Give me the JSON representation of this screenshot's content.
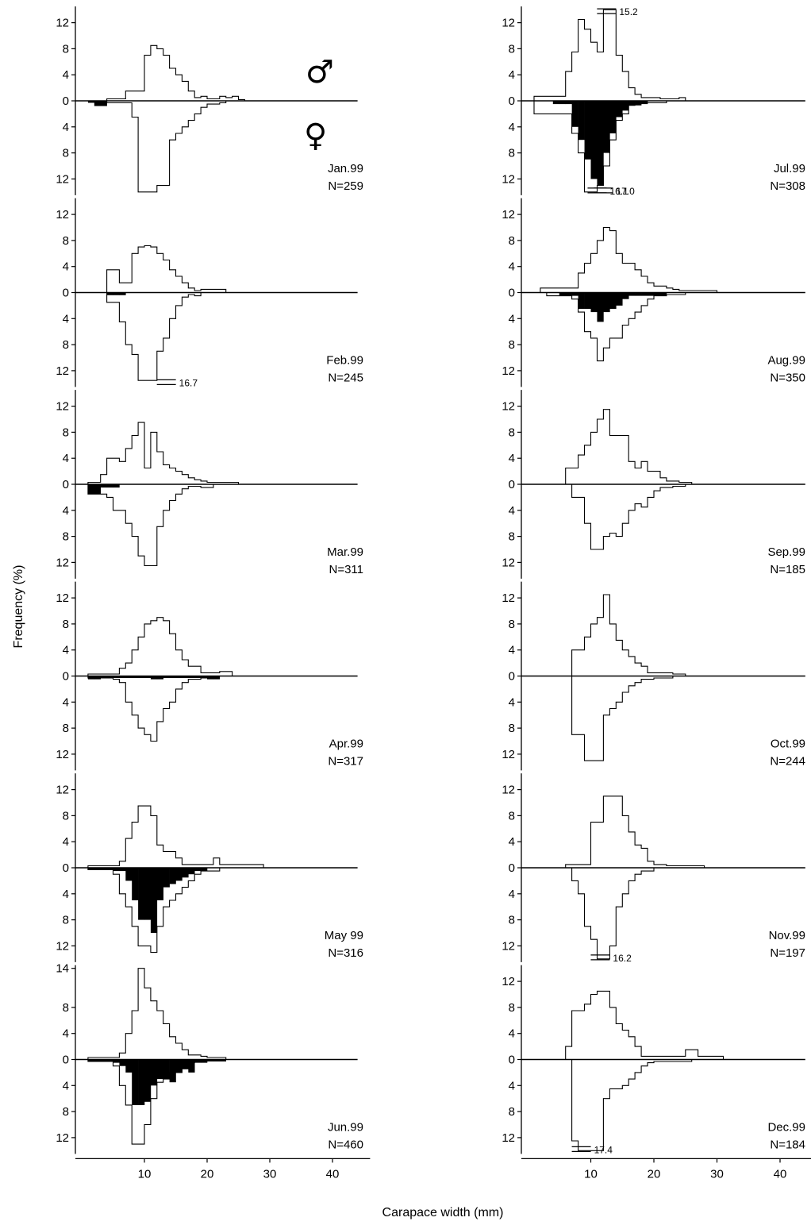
{
  "figure": {
    "xlabel": "Carapace width (mm)",
    "ylabel": "Frequency (%)",
    "male_symbol": "♂",
    "female_symbol": "♀"
  },
  "chart_data": {
    "type": "bar",
    "subtype": "mirrored size-frequency histogram (males up, females down; black = ovigerous females)",
    "bin_width_mm": 1,
    "x_range": [
      0,
      46
    ],
    "x_ticks": [
      10,
      20,
      30,
      40
    ],
    "y_range_up": [
      0,
      14
    ],
    "y_range_down": [
      0,
      14
    ],
    "y_ticks_default": [
      0,
      4,
      8,
      12
    ],
    "panels": [
      {
        "month": "Jan.99",
        "n": "N=259",
        "col": 0,
        "row": 0,
        "males": {
          "start": 4,
          "values": [
            0.3,
            0.3,
            0.3,
            1.5,
            1.5,
            1.5,
            7.0,
            8.5,
            8.0,
            7.0,
            5.0,
            4.0,
            3.0,
            1.5,
            0.5,
            0.7,
            0.3,
            0.3,
            0.7,
            0.5,
            0.7,
            0.2
          ]
        },
        "females": {
          "start": 4,
          "values": [
            0.3,
            0.3,
            0.3,
            0.3,
            2.5,
            14,
            14,
            14,
            13,
            13,
            6,
            5,
            4,
            3,
            2,
            1,
            0.5,
            0.5,
            0.3
          ]
        },
        "ovigerous": {
          "start": 1,
          "values": [
            0.3,
            0.8,
            0.8
          ]
        },
        "annotations": []
      },
      {
        "month": "Feb.99",
        "n": "N=245",
        "col": 0,
        "row": 1,
        "males": {
          "start": 4,
          "values": [
            3.5,
            3.5,
            1.5,
            1.5,
            6.0,
            7.0,
            7.2,
            7.0,
            6.0,
            5.0,
            3.5,
            2.5,
            1.5,
            0.7,
            0.3,
            0.5,
            0.5,
            0.5,
            0.5
          ]
        },
        "females": {
          "start": 4,
          "values": [
            1.5,
            1.5,
            4.5,
            8.0,
            9.5,
            13.5,
            13.5,
            13.5,
            9,
            7,
            4,
            2,
            0.7,
            0.3,
            0.5
          ]
        },
        "ovigerous": {
          "start": 4,
          "values": [
            0.4,
            0.4,
            0.4
          ]
        },
        "annotations": [
          {
            "text": "16.7",
            "x": 13.5,
            "side": "down"
          }
        ]
      },
      {
        "month": "Mar.99",
        "n": "N=311",
        "col": 0,
        "row": 2,
        "males": {
          "start": 1,
          "values": [
            0.3,
            0.3,
            1.5,
            4.0,
            4.0,
            3.5,
            5.5,
            7.5,
            9.5,
            2.5,
            8.0,
            5.0,
            3.0,
            2.5,
            2.0,
            1.5,
            1.0,
            0.7,
            0.5,
            0.3,
            0.3,
            0.3,
            0.3,
            0.3
          ]
        },
        "females": {
          "start": 1,
          "values": [
            1.5,
            1.5,
            1.5,
            2,
            4,
            4,
            6,
            8,
            11,
            12.5,
            12.5,
            6.5,
            4,
            2.5,
            1.5,
            0.7,
            0.3,
            0.3,
            0.5,
            0.5
          ]
        },
        "ovigerous": {
          "start": 1,
          "values": [
            1.5,
            1.5,
            0.5,
            0.5,
            0.5
          ]
        },
        "annotations": []
      },
      {
        "month": "Apr.99",
        "n": "N=317",
        "col": 0,
        "row": 3,
        "males": {
          "start": 1,
          "values": [
            0.3,
            0.3,
            0.3,
            0.3,
            0.3,
            1.2,
            2.0,
            4.0,
            6.0,
            8.0,
            8.5,
            9.0,
            8.5,
            6.5,
            4.0,
            2.5,
            1.5,
            1.5,
            0.5,
            0.5,
            0.5,
            0.7,
            0.7
          ]
        },
        "females": {
          "start": 1,
          "values": [
            0.3,
            0.3,
            0.3,
            0.3,
            0.5,
            1,
            4,
            6,
            8,
            9,
            10,
            7,
            5,
            4,
            2,
            1,
            0.5,
            0.5,
            0.3,
            0.3
          ]
        },
        "ovigerous": {
          "start": 1,
          "values": [
            0.5,
            0.5,
            0.3,
            0.3,
            0.3,
            0.3,
            0.3,
            0.3,
            0.3,
            0.3,
            0.5,
            0.5,
            0.3,
            0.3,
            0.3,
            0.3,
            0.3,
            0.3,
            0.3,
            0.5,
            0.5
          ]
        },
        "annotations": []
      },
      {
        "month": "May 99",
        "n": "N=316",
        "col": 0,
        "row": 4,
        "males": {
          "start": 1,
          "values": [
            0.3,
            0.3,
            0.3,
            0.3,
            0.3,
            1.0,
            4.5,
            7.0,
            9.5,
            9.5,
            8.0,
            3.5,
            2.5,
            2.5,
            1.5,
            0.5,
            0.5,
            0.5,
            0.5,
            0.5,
            1.5,
            0.5,
            0.5,
            0.5,
            0.5,
            0.5,
            0.5,
            0.5
          ]
        },
        "females": {
          "start": 1,
          "values": [
            0.3,
            0.3,
            0.3,
            0.3,
            1,
            4,
            6,
            9,
            12,
            12,
            13,
            9,
            6,
            5,
            4,
            3,
            2,
            1,
            0.5,
            0.5,
            0.5
          ]
        },
        "ovigerous": {
          "start": 1,
          "values": [
            0.3,
            0.3,
            0.3,
            0.3,
            0.5,
            0.5,
            2,
            5,
            8,
            8,
            10,
            5,
            3,
            2.5,
            2,
            1.5,
            1,
            0.5,
            0.5
          ]
        },
        "annotations": []
      },
      {
        "month": "Jun.99",
        "n": "N=460",
        "col": 0,
        "row": 5,
        "males": {
          "start": 1,
          "values": [
            0.3,
            0.3,
            0.3,
            0.3,
            0.3,
            1.0,
            4.0,
            7.5,
            14,
            11,
            9.0,
            7.5,
            5.5,
            3.5,
            2.5,
            1.5,
            0.7,
            0.7,
            0.5,
            0.3,
            0.3,
            0.3
          ]
        },
        "females": {
          "start": 1,
          "values": [
            0.3,
            0.3,
            0.3,
            0.3,
            1,
            4,
            7,
            13,
            13,
            10,
            6,
            3.5,
            3,
            2,
            2,
            0.5,
            0.5,
            0.3
          ]
        },
        "ovigerous": {
          "start": 1,
          "values": [
            0.3,
            0.3,
            0.3,
            0.3,
            0.5,
            1,
            2,
            7,
            7,
            6.5,
            4,
            3,
            3,
            3.5,
            2,
            1.5,
            2,
            0.5,
            0.5,
            0.3,
            0.3,
            0.3
          ]
        },
        "annotations": []
      },
      {
        "month": "Jul.99",
        "n": "N=308",
        "col": 1,
        "row": 0,
        "males": {
          "start": 1,
          "values": [
            0.7,
            0.7,
            0.7,
            0.7,
            0.7,
            4.5,
            7.5,
            12.5,
            11,
            9,
            7.5,
            14,
            14,
            7.0,
            4.5,
            2.0,
            1.0,
            0.5,
            0.5,
            0.5,
            0.3,
            0.3,
            0.3,
            0.5
          ]
        },
        "females": {
          "start": 1,
          "values": [
            2,
            2,
            2,
            2,
            2,
            2,
            5,
            8,
            14,
            14,
            13,
            10,
            6,
            3,
            2,
            0.7,
            0.3,
            0.3,
            0.3,
            0.3,
            0.3
          ]
        },
        "ovigerous": {
          "start": 4,
          "values": [
            0.5,
            0.5,
            0.5,
            4,
            6,
            9,
            12,
            13,
            8,
            5,
            2.5,
            1.5,
            0.7,
            0.7,
            0.5
          ]
        },
        "annotations": [
          {
            "text": "15.2",
            "x": 12.5,
            "side": "up"
          },
          {
            "text": "16.1",
            "x": 11.0,
            "side": "down"
          },
          {
            "text": "17.0",
            "x": 12.0,
            "side": "down"
          }
        ]
      },
      {
        "month": "Aug.99",
        "n": "N=350",
        "col": 1,
        "row": 1,
        "males": {
          "start": 2,
          "values": [
            0.7,
            0.7,
            0.7,
            0.7,
            0.7,
            0.7,
            3.0,
            4.5,
            6.0,
            8.0,
            10.0,
            9.5,
            6.0,
            4.5,
            4.5,
            3.5,
            2.5,
            1.5,
            1.0,
            1.0,
            0.7,
            0.5,
            0.3,
            0.3,
            0.3,
            0.3,
            0.3,
            0.3
          ]
        },
        "females": {
          "start": 3,
          "values": [
            0.5,
            0.5,
            0.5,
            0.5,
            1,
            3,
            6,
            7,
            10.5,
            8.5,
            7,
            7,
            5,
            4,
            3,
            2,
            1,
            0.5,
            0.5,
            0.3,
            0.3,
            0.3
          ]
        },
        "ovigerous": {
          "start": 5,
          "values": [
            0.5,
            0.5,
            0.5,
            2.5,
            2.5,
            3,
            4.5,
            3,
            2.5,
            2,
            1,
            0.5,
            0.5,
            0.5,
            0.5,
            0.5,
            0.5
          ]
        },
        "annotations": []
      },
      {
        "month": "Sep.99",
        "n": "N=185",
        "col": 1,
        "row": 2,
        "males": {
          "start": 6,
          "values": [
            2.5,
            2.5,
            4.5,
            6.0,
            8.0,
            10.0,
            11.5,
            7.5,
            7.5,
            7.5,
            3.5,
            2.5,
            3.5,
            2.0,
            2.0,
            1.0,
            0.5,
            0.5,
            0.3,
            0.3
          ]
        },
        "females": {
          "start": 7,
          "values": [
            2,
            2,
            6,
            10,
            10,
            8,
            7.5,
            8,
            6,
            4,
            3,
            3.5,
            2,
            1,
            0.5,
            0.5,
            0.3,
            0.3
          ]
        },
        "ovigerous": {
          "start": 7,
          "values": []
        },
        "annotations": []
      },
      {
        "month": "Oct.99",
        "n": "N=244",
        "col": 1,
        "row": 3,
        "males": {
          "start": 7,
          "values": [
            4.0,
            4.0,
            6.0,
            8.0,
            9.0,
            12.5,
            8.0,
            5.5,
            4.0,
            3.0,
            2.0,
            1.5,
            0.5,
            0.5,
            0.5,
            0.5,
            0.3,
            0.3
          ]
        },
        "females": {
          "start": 7,
          "values": [
            9,
            9,
            13,
            13,
            13,
            6,
            5,
            4,
            2.5,
            1.5,
            1,
            0.5,
            0.5,
            0.3,
            0.3,
            0.3
          ]
        },
        "ovigerous": {
          "start": 7,
          "values": []
        },
        "annotations": []
      },
      {
        "month": "Nov.99",
        "n": "N=197",
        "col": 1,
        "row": 4,
        "males": {
          "start": 6,
          "values": [
            0.5,
            0.5,
            0.5,
            0.5,
            7.0,
            7.0,
            11.0,
            11.0,
            11.0,
            8.0,
            5.5,
            3.5,
            3.0,
            1.0,
            0.5,
            0.5,
            0.3,
            0.3,
            0.3,
            0.3,
            0.3,
            0.3
          ]
        },
        "females": {
          "start": 7,
          "values": [
            2,
            4,
            9,
            11,
            14,
            14,
            12,
            6,
            4,
            2,
            1,
            0.5,
            0.5
          ]
        },
        "ovigerous": {
          "start": 7,
          "values": []
        },
        "annotations": [
          {
            "text": "16.2",
            "x": 11.5,
            "side": "down"
          }
        ]
      },
      {
        "month": "Dec.99",
        "n": "N=184",
        "col": 1,
        "row": 5,
        "males": {
          "start": 6,
          "values": [
            2.0,
            7.5,
            7.5,
            8.5,
            10.0,
            10.5,
            10.5,
            8.0,
            5.5,
            4.5,
            3.5,
            2.0,
            0.5,
            0.5,
            0.5,
            0.5,
            0.5,
            0.5,
            0.5,
            1.5,
            1.5,
            0.5,
            0.5,
            0.5,
            0.5
          ]
        },
        "females": {
          "start": 7,
          "values": [
            12.5,
            14,
            14,
            14,
            14,
            6,
            4.5,
            4.5,
            4,
            3,
            2,
            1,
            0.5,
            0.3,
            0.3,
            0.3,
            0.3,
            0.3,
            0.3
          ]
        },
        "ovigerous": {
          "start": 7,
          "values": []
        },
        "annotations": [
          {
            "text": "17.4",
            "x": 8.5,
            "side": "down"
          }
        ]
      }
    ]
  }
}
